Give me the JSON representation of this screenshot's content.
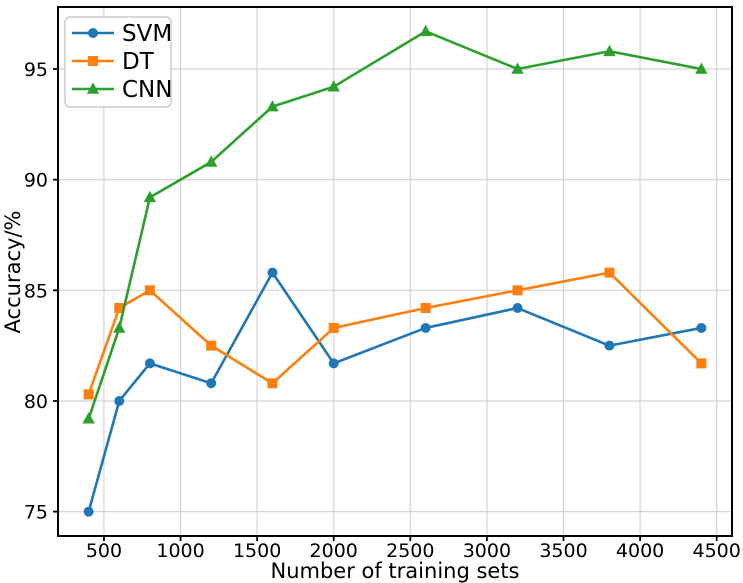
{
  "figure": {
    "background": "#ffffff",
    "grid_color": "#d4d4d4",
    "spine_color": "#000000",
    "legend_border_color": "#cccccc",
    "legend_background": "#ffffff"
  },
  "chart_data": {
    "type": "line",
    "title": "",
    "xlabel": "Number of training sets",
    "ylabel": "Accuracy/%",
    "x": [
      400,
      600,
      800,
      1200,
      1600,
      2000,
      2600,
      3200,
      3800,
      4400
    ],
    "series": [
      {
        "name": "SVM",
        "color": "#1f77b4",
        "marker": "circle",
        "values": [
          75.0,
          80.0,
          81.7,
          80.8,
          85.8,
          81.7,
          83.3,
          84.2,
          82.5,
          83.3
        ]
      },
      {
        "name": "DT",
        "color": "#ff7f0e",
        "marker": "square",
        "values": [
          80.3,
          84.2,
          85.0,
          82.5,
          80.8,
          83.3,
          84.2,
          85.0,
          85.8,
          81.7
        ]
      },
      {
        "name": "CNN",
        "color": "#2ca02c",
        "marker": "triangle",
        "values": [
          79.2,
          83.3,
          89.2,
          90.8,
          93.3,
          94.2,
          96.7,
          95.0,
          95.8,
          95.0
        ]
      }
    ],
    "x_ticks": [
      500,
      1000,
      1500,
      2000,
      2500,
      3000,
      3500,
      4000,
      4500
    ],
    "y_ticks": [
      75,
      80,
      85,
      90,
      95
    ],
    "xlim": [
      200,
      4600
    ],
    "ylim": [
      73.9,
      97.8
    ],
    "grid": true,
    "legend_position": "upper left",
    "legend_entries": [
      "SVM",
      "DT",
      "CNN"
    ]
  }
}
